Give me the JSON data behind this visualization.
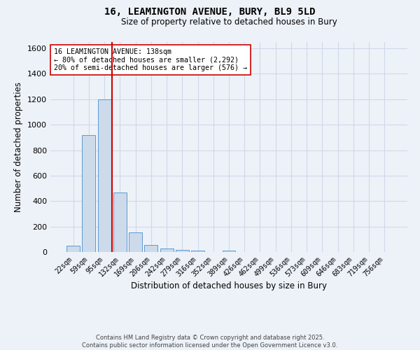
{
  "title_line1": "16, LEAMINGTON AVENUE, BURY, BL9 5LD",
  "title_line2": "Size of property relative to detached houses in Bury",
  "xlabel": "Distribution of detached houses by size in Bury",
  "ylabel": "Number of detached properties",
  "bar_labels": [
    "22sqm",
    "59sqm",
    "95sqm",
    "132sqm",
    "169sqm",
    "206sqm",
    "242sqm",
    "279sqm",
    "316sqm",
    "352sqm",
    "389sqm",
    "426sqm",
    "462sqm",
    "499sqm",
    "536sqm",
    "573sqm",
    "609sqm",
    "646sqm",
    "683sqm",
    "719sqm",
    "756sqm"
  ],
  "bar_values": [
    50,
    920,
    1200,
    470,
    155,
    55,
    30,
    15,
    10,
    0,
    10,
    0,
    0,
    0,
    0,
    0,
    0,
    0,
    0,
    0,
    0
  ],
  "bar_color": "#ccdaea",
  "bar_edgecolor": "#5b9bd5",
  "grid_color": "#d0d8e8",
  "background_color": "#edf2f8",
  "vline_color": "#cc0000",
  "annotation_text": "16 LEAMINGTON AVENUE: 138sqm\n← 80% of detached houses are smaller (2,292)\n20% of semi-detached houses are larger (576) →",
  "annotation_box_color": "#ffffff",
  "annotation_box_edgecolor": "#cc0000",
  "ylim": [
    0,
    1650
  ],
  "yticks": [
    0,
    200,
    400,
    600,
    800,
    1000,
    1200,
    1400,
    1600
  ],
  "footer_text": "Contains HM Land Registry data © Crown copyright and database right 2025.\nContains public sector information licensed under the Open Government Licence v3.0.",
  "figsize": [
    6.0,
    5.0
  ],
  "dpi": 100
}
